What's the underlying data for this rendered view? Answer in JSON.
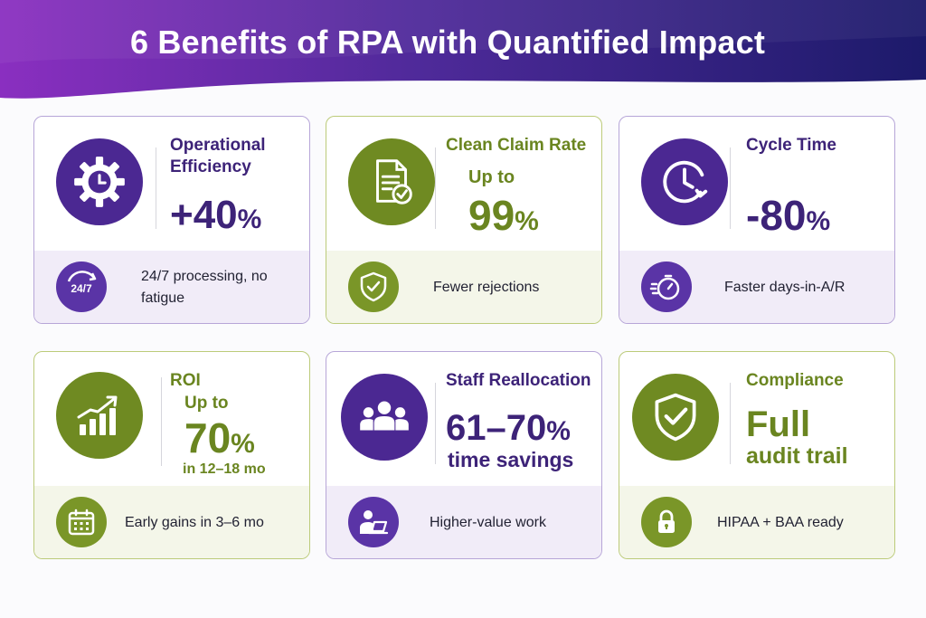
{
  "title": "6 Benefits of RPA with Quantified Impact",
  "colors": {
    "purple": "#4b2892",
    "green": "#6f8a22",
    "banner_start": "#8a2fc0",
    "banner_end": "#1c1a6a"
  },
  "cards": [
    {
      "label": "Operational Efficiency",
      "prefix": "",
      "value": "+40",
      "unit": "%",
      "suffix": "",
      "footer": "24/7 processing, no fatigue",
      "icon": "gear-clock-icon",
      "footer_icon": "24-7-icon",
      "theme": "purple"
    },
    {
      "label": "Clean Claim Rate",
      "prefix": "Up to",
      "value": "99",
      "unit": "%",
      "suffix": "",
      "footer": "Fewer rejections",
      "icon": "document-check-icon",
      "footer_icon": "shield-check-icon",
      "theme": "green"
    },
    {
      "label": "Cycle Time",
      "prefix": "",
      "value": "-80",
      "unit": "%",
      "suffix": "",
      "footer": "Faster days-in-A/R",
      "icon": "clock-arrow-icon",
      "footer_icon": "stopwatch-icon",
      "theme": "purple"
    },
    {
      "label": "ROI",
      "prefix": "Up to",
      "value": "70",
      "unit": "%",
      "suffix": "in 12–18 mo",
      "footer": "Early gains in 3–6 mo",
      "icon": "growth-chart-icon",
      "footer_icon": "calendar-icon",
      "theme": "green"
    },
    {
      "label": "Staff Reallocation",
      "prefix": "",
      "value": "61–70",
      "unit": "%",
      "suffix": "time savings",
      "footer": "Higher-value work",
      "icon": "team-icon",
      "footer_icon": "person-laptop-icon",
      "theme": "purple"
    },
    {
      "label": "Compliance",
      "prefix": "",
      "value": "Full",
      "unit": "",
      "suffix": "audit trail",
      "footer": "HIPAA + BAA ready",
      "icon": "shield-check-icon",
      "footer_icon": "lock-icon",
      "theme": "green"
    }
  ]
}
